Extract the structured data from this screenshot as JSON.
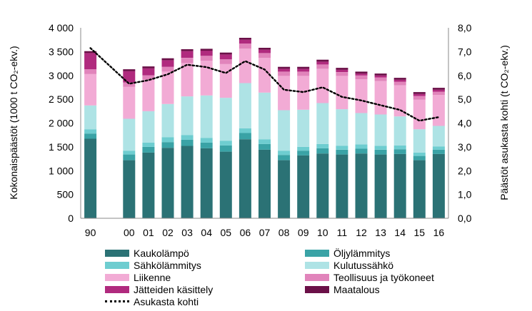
{
  "chart_data": {
    "type": "bar",
    "stacked": true,
    "categories": [
      "90",
      "00",
      "01",
      "02",
      "03",
      "04",
      "05",
      "06",
      "07",
      "08",
      "09",
      "10",
      "11",
      "12",
      "13",
      "14",
      "15",
      "16"
    ],
    "ylabel_left": "Kokonaispäästöt (1000 t CO₂-ekv.)",
    "ylabel_right": "Päästöt asukasta kohti (t CO₂-ekv.)",
    "ylim_left": [
      0,
      4000
    ],
    "ylim_right": [
      0,
      8
    ],
    "yticks_left": [
      "0",
      "500",
      "1 000",
      "1 500",
      "2 000",
      "2 500",
      "3 000",
      "3 500",
      "4 000"
    ],
    "yticks_right": [
      "0,0",
      "1,0",
      "2,0",
      "3,0",
      "4,0",
      "5,0",
      "6,0",
      "7,0",
      "8,0"
    ],
    "grid": false,
    "legend_position": "bottom",
    "series": [
      {
        "name": "Kaukolämpö",
        "color": "#2b7275",
        "values": [
          1670,
          1220,
          1380,
          1480,
          1520,
          1470,
          1400,
          1660,
          1440,
          1220,
          1320,
          1360,
          1340,
          1360,
          1340,
          1350,
          1220,
          1350
        ]
      },
      {
        "name": "Öljylämmitys",
        "color": "#3aa3a6",
        "values": [
          110,
          120,
          120,
          120,
          130,
          120,
          130,
          130,
          120,
          110,
          100,
          110,
          100,
          100,
          100,
          100,
          90,
          90
        ]
      },
      {
        "name": "Sähkölämmitys",
        "color": "#6ecdd0",
        "values": [
          90,
          80,
          90,
          100,
          100,
          100,
          100,
          100,
          100,
          90,
          80,
          90,
          80,
          90,
          80,
          80,
          70,
          70
        ]
      },
      {
        "name": "Kulutussähkö",
        "color": "#aee3e5",
        "values": [
          500,
          670,
          660,
          700,
          810,
          890,
          900,
          950,
          980,
          850,
          780,
          860,
          770,
          660,
          660,
          610,
          490,
          430
        ]
      },
      {
        "name": "Liikenne",
        "color": "#f2abd5",
        "values": [
          660,
          670,
          660,
          680,
          700,
          730,
          710,
          720,
          730,
          720,
          710,
          720,
          700,
          710,
          700,
          650,
          620,
          650
        ]
      },
      {
        "name": "Teollisuus ja työkoneet",
        "color": "#e184bb",
        "values": [
          100,
          90,
          90,
          100,
          110,
          100,
          100,
          110,
          100,
          90,
          90,
          90,
          80,
          80,
          80,
          80,
          80,
          70
        ]
      },
      {
        "name": "Jätteiden käsittely",
        "color": "#b02a7e",
        "values": [
          340,
          240,
          150,
          140,
          140,
          110,
          100,
          80,
          70,
          60,
          60,
          60,
          50,
          40,
          40,
          40,
          40,
          40
        ]
      },
      {
        "name": "Maatalous",
        "color": "#6b1048",
        "values": [
          40,
          40,
          40,
          40,
          40,
          40,
          40,
          40,
          40,
          40,
          40,
          40,
          40,
          40,
          40,
          40,
          40,
          40
        ]
      }
    ],
    "line_series": {
      "name": "Asukasta kohti",
      "axis": "right",
      "values": [
        7.15,
        5.65,
        5.8,
        6.05,
        6.45,
        6.35,
        6.1,
        6.6,
        6.25,
        5.4,
        5.3,
        5.5,
        5.1,
        4.95,
        4.75,
        4.55,
        4.1,
        4.25
      ]
    }
  }
}
